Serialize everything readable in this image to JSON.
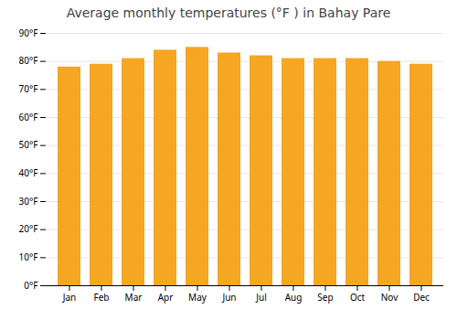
{
  "chart_data": {
    "type": "bar",
    "title": "Average monthly temperatures (°F ) in Bahay Pare",
    "categories": [
      "Jan",
      "Feb",
      "Mar",
      "Apr",
      "May",
      "Jun",
      "Jul",
      "Aug",
      "Sep",
      "Oct",
      "Nov",
      "Dec"
    ],
    "values": [
      78,
      79,
      81,
      84,
      85,
      83,
      82,
      81,
      81,
      81,
      80,
      79
    ],
    "color": "#F5A623",
    "ylim": [
      0,
      90
    ],
    "yticks": [
      {
        "value": 0,
        "label": "0°F"
      },
      {
        "value": 10,
        "label": "10°F"
      },
      {
        "value": 20,
        "label": "20°F"
      },
      {
        "value": 30,
        "label": "30°F"
      },
      {
        "value": 40,
        "label": "40°F"
      },
      {
        "value": 50,
        "label": "50°F"
      },
      {
        "value": 60,
        "label": "60°F"
      },
      {
        "value": 70,
        "label": "70°F"
      },
      {
        "value": 80,
        "label": "80°F"
      },
      {
        "value": 90,
        "label": "90°F"
      }
    ],
    "grid": true
  }
}
